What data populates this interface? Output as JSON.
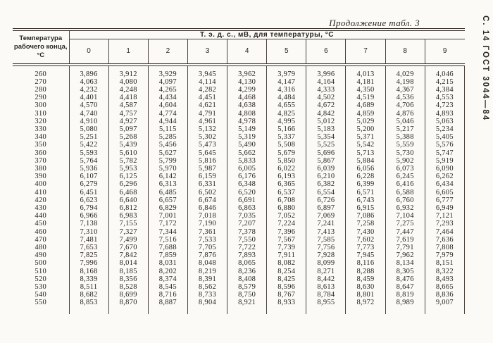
{
  "page": {
    "continuation_title": "Продолжение табл. 3",
    "side_note": "С. 14 ГОСТ 3044—84"
  },
  "table": {
    "corner_header": "Температура рабочего конца, °С",
    "span_header": "Т. э. д. с., мВ, для температуры, °С",
    "column_headers": [
      "0",
      "1",
      "2",
      "3",
      "4",
      "5",
      "6",
      "7",
      "8",
      "9"
    ],
    "rows": [
      {
        "temp": "260",
        "values": [
          "3,896",
          "3,912",
          "3,929",
          "3,945",
          "3,962",
          "3,979",
          "3,996",
          "4,013",
          "4,029",
          "4,046"
        ]
      },
      {
        "temp": "270",
        "values": [
          "4,063",
          "4,080",
          "4,097",
          "4,114",
          "4,130",
          "4,147",
          "4,164",
          "4,181",
          "4,198",
          "4,215"
        ]
      },
      {
        "temp": "280",
        "values": [
          "4,232",
          "4,248",
          "4,265",
          "4,282",
          "4,299",
          "4,316",
          "4,333",
          "4,350",
          "4,367",
          "4,384"
        ]
      },
      {
        "temp": "290",
        "values": [
          "4,401",
          "4,418",
          "4,434",
          "4,451",
          "4,468",
          "4,484",
          "4,502",
          "4,519",
          "4,536",
          "4,553"
        ]
      },
      {
        "temp": "300",
        "values": [
          "4,570",
          "4,587",
          "4,604",
          "4,621",
          "4,638",
          "4,655",
          "4,672",
          "4,689",
          "4,706",
          "4,723"
        ]
      },
      {
        "temp": "310",
        "values": [
          "4,740",
          "4,757",
          "4,774",
          "4,791",
          "4,808",
          "4,825",
          "4,842",
          "4,859",
          "4,876",
          "4,893"
        ]
      },
      {
        "temp": "320",
        "values": [
          "4,910",
          "4,927",
          "4,944",
          "4,961",
          "4,978",
          "4,995",
          "5,012",
          "5,029",
          "5,046",
          "5,063"
        ]
      },
      {
        "temp": "330",
        "values": [
          "5,080",
          "5,097",
          "5,115",
          "5,132",
          "5,149",
          "5,166",
          "5,183",
          "5,200",
          "5,217",
          "5,234"
        ]
      },
      {
        "temp": "340",
        "values": [
          "5,251",
          "5,268",
          "5,285",
          "5,302",
          "5,319",
          "5,337",
          "5,354",
          "5,371",
          "5,388",
          "5,405"
        ]
      },
      {
        "temp": "350",
        "values": [
          "5,422",
          "5,439",
          "5,456",
          "5,473",
          "5,490",
          "5,508",
          "5,525",
          "5,542",
          "5,559",
          "5,576"
        ]
      },
      {
        "temp": "360",
        "values": [
          "5,593",
          "5,610",
          "5,627",
          "5,645",
          "5,662",
          "5,679",
          "5,696",
          "5,713",
          "5,730",
          "5,747"
        ]
      },
      {
        "temp": "370",
        "values": [
          "5,764",
          "5,782",
          "5,799",
          "5,816",
          "5,833",
          "5,850",
          "5,867",
          "5,884",
          "5,902",
          "5,919"
        ]
      },
      {
        "temp": "380",
        "values": [
          "5,936",
          "5,953",
          "5,970",
          "5,987",
          "6,005",
          "6,022",
          "6,039",
          "6,056",
          "6,073",
          "6,090"
        ]
      },
      {
        "temp": "390",
        "values": [
          "6,107",
          "6,125",
          "6,142",
          "6,159",
          "6,176",
          "6,193",
          "6,210",
          "6,228",
          "6,245",
          "6,262"
        ]
      },
      {
        "temp": "400",
        "values": [
          "6,279",
          "6,296",
          "6,313",
          "6,331",
          "6,348",
          "6,365",
          "6,382",
          "6,399",
          "6,416",
          "6,434"
        ]
      },
      {
        "temp": "410",
        "values": [
          "6,451",
          "6,468",
          "6,485",
          "6,502",
          "6,520",
          "6,537",
          "6,554",
          "6,571",
          "6,588",
          "6,605"
        ]
      },
      {
        "temp": "420",
        "values": [
          "6,623",
          "6,640",
          "6,657",
          "6,674",
          "6,691",
          "6,708",
          "6,726",
          "6,743",
          "6,760",
          "6,777"
        ]
      },
      {
        "temp": "430",
        "values": [
          "6,794",
          "6,812",
          "6,829",
          "6,846",
          "6,863",
          "6,880",
          "6,897",
          "6,915",
          "6,932",
          "6,949"
        ]
      },
      {
        "temp": "440",
        "values": [
          "6,966",
          "6,983",
          "7,001",
          "7,018",
          "7,035",
          "7,052",
          "7,069",
          "7,086",
          "7,104",
          "7,121"
        ]
      },
      {
        "temp": "450",
        "values": [
          "7,138",
          "7,155",
          "7,172",
          "7,190",
          "7,207",
          "7,224",
          "7,241",
          "7,258",
          "7,275",
          "7,293"
        ]
      },
      {
        "temp": "460",
        "values": [
          "7,310",
          "7,327",
          "7,344",
          "7,361",
          "7,378",
          "7,396",
          "7,413",
          "7,430",
          "7,447",
          "7,464"
        ]
      },
      {
        "temp": "470",
        "values": [
          "7,481",
          "7,499",
          "7,516",
          "7,533",
          "7,550",
          "7,567",
          "7,585",
          "7,602",
          "7,619",
          "7,636"
        ]
      },
      {
        "temp": "480",
        "values": [
          "7,653",
          "7,670",
          "7,688",
          "7,705",
          "7,722",
          "7,739",
          "7,756",
          "7,773",
          "7,791",
          "7,808"
        ]
      },
      {
        "temp": "490",
        "values": [
          "7,825",
          "7,842",
          "7,859",
          "7,876",
          "7,893",
          "7,911",
          "7,928",
          "7,945",
          "7,962",
          "7,979"
        ]
      },
      {
        "temp": "500",
        "values": [
          "7,996",
          "8,014",
          "8,031",
          "8,048",
          "8,065",
          "8,082",
          "8,099",
          "8,116",
          "8,134",
          "8,151"
        ]
      },
      {
        "temp": "510",
        "values": [
          "8,168",
          "8,185",
          "8,202",
          "8,219",
          "8,236",
          "8,254",
          "8,271",
          "8,288",
          "8,305",
          "8,322"
        ]
      },
      {
        "temp": "520",
        "values": [
          "8,339",
          "8,356",
          "8,374",
          "8,391",
          "8,408",
          "8,425",
          "8,442",
          "8,459",
          "8,476",
          "8,493"
        ]
      },
      {
        "temp": "530",
        "values": [
          "8,511",
          "8,528",
          "8,545",
          "8,562",
          "8,579",
          "8,596",
          "8,613",
          "8,630",
          "8,647",
          "8,665"
        ]
      },
      {
        "temp": "540",
        "values": [
          "8,682",
          "8,699",
          "8,716",
          "8,733",
          "8,750",
          "8,767",
          "8,784",
          "8,801",
          "8,819",
          "8,836"
        ]
      },
      {
        "temp": "550",
        "values": [
          "8,853",
          "8,870",
          "8,887",
          "8,904",
          "8,921",
          "8,933",
          "8,955",
          "8,972",
          "8,989",
          "9,007"
        ]
      }
    ]
  }
}
